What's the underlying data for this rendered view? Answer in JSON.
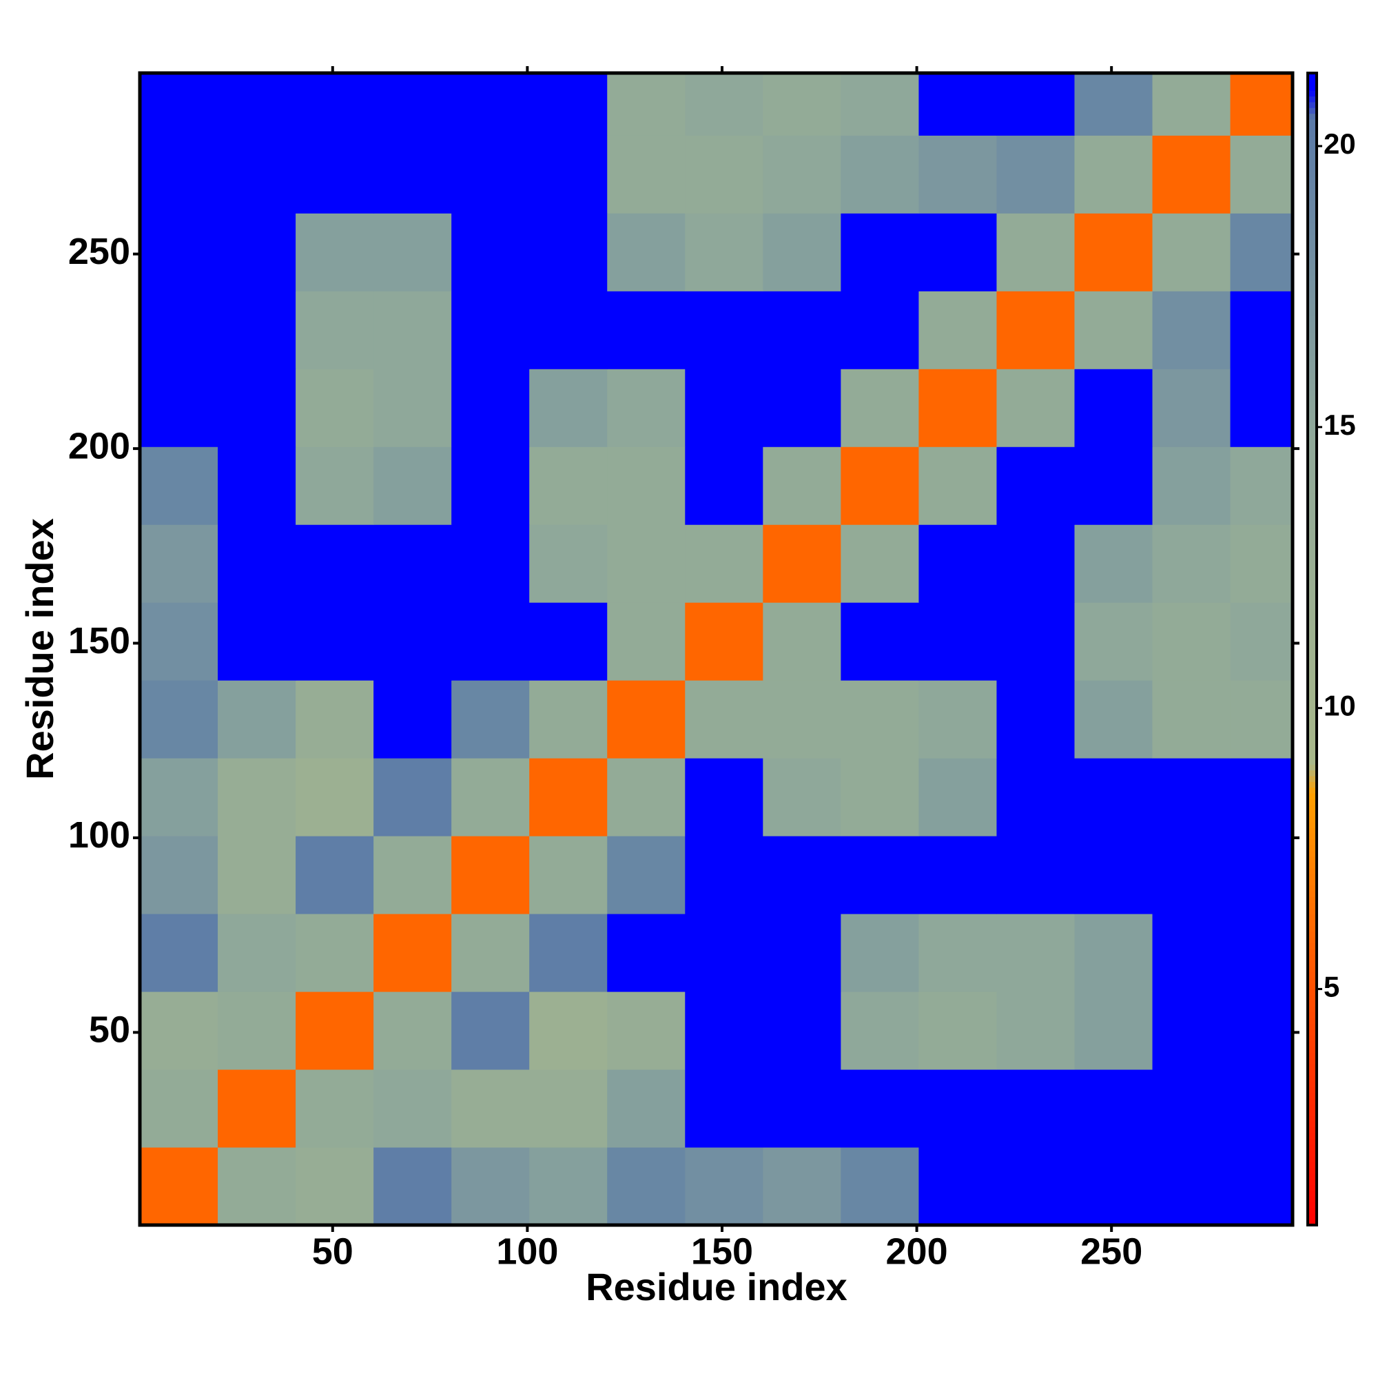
{
  "chart_data": {
    "type": "heatmap",
    "x_label": "Residue index",
    "y_label": "Residue index",
    "bins": [
      0.5,
      20.5,
      40.5,
      60.5,
      80.5,
      100.5,
      120.5,
      140.5,
      160.5,
      180.5,
      200.5,
      220.5,
      240.5,
      260.5,
      280.5,
      296.5
    ],
    "values": [
      [
        6,
        14,
        13,
        20,
        17,
        16,
        19,
        18,
        17,
        19,
        21,
        21,
        21,
        21,
        21
      ],
      [
        14,
        6,
        14,
        15,
        13,
        13,
        16,
        21,
        21,
        21,
        21,
        21,
        21,
        21,
        21
      ],
      [
        13,
        14,
        6,
        14,
        20,
        12,
        13,
        21,
        21,
        15,
        14,
        15,
        16,
        21,
        21
      ],
      [
        20,
        15,
        14,
        6,
        14,
        20,
        21,
        21,
        21,
        16,
        15,
        15,
        16,
        21,
        21
      ],
      [
        17,
        13,
        20,
        14,
        6,
        14,
        19,
        21,
        21,
        21,
        21,
        21,
        21,
        21,
        21
      ],
      [
        16,
        13,
        12,
        20,
        14,
        6,
        14,
        21,
        15,
        14,
        16,
        21,
        21,
        21,
        21
      ],
      [
        19,
        16,
        13,
        21,
        19,
        14,
        6,
        14,
        14,
        14,
        15,
        21,
        16,
        14,
        14
      ],
      [
        18,
        21,
        21,
        21,
        21,
        21,
        14,
        6,
        14,
        21,
        21,
        21,
        15,
        14,
        15
      ],
      [
        17,
        21,
        21,
        21,
        21,
        15,
        14,
        14,
        6,
        14,
        21,
        21,
        16,
        15,
        14
      ],
      [
        19,
        21,
        15,
        16,
        21,
        14,
        14,
        21,
        14,
        6,
        14,
        21,
        21,
        16,
        15
      ],
      [
        21,
        21,
        14,
        15,
        21,
        16,
        15,
        21,
        21,
        14,
        6,
        14,
        21,
        17,
        21
      ],
      [
        21,
        21,
        15,
        15,
        21,
        21,
        21,
        21,
        21,
        21,
        14,
        6,
        14,
        18,
        21
      ],
      [
        21,
        21,
        16,
        16,
        21,
        21,
        16,
        15,
        16,
        21,
        21,
        14,
        6,
        14,
        19
      ],
      [
        21,
        21,
        21,
        21,
        21,
        21,
        14,
        14,
        15,
        16,
        17,
        18,
        14,
        6,
        14
      ],
      [
        21,
        21,
        21,
        21,
        21,
        21,
        14,
        15,
        14,
        15,
        21,
        21,
        19,
        14,
        6
      ]
    ],
    "xlim": [
      0.5,
      296.5
    ],
    "ylim": [
      0.5,
      296.5
    ],
    "xticks": [
      50,
      100,
      150,
      200,
      250
    ],
    "yticks": [
      50,
      100,
      150,
      200,
      250
    ],
    "colorbar_lim": [
      0.8,
      21.3
    ],
    "colorbar_ticks": [
      5,
      10,
      15,
      20
    ],
    "colorscale": [
      [
        0.8,
        "#ff0000"
      ],
      [
        5.5,
        "#ff5a00"
      ],
      [
        8.5,
        "#ffa000"
      ],
      [
        9,
        "#a8b88a"
      ],
      [
        15,
        "#8fa89a"
      ],
      [
        20.5,
        "#5a7aa8"
      ],
      [
        21,
        "#0000ff"
      ]
    ]
  }
}
